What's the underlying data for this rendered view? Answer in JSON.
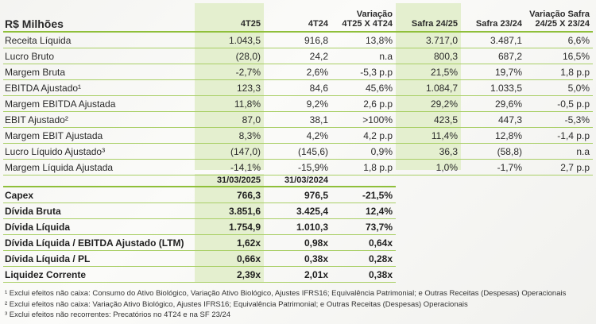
{
  "header": {
    "label": "R$ Milhões",
    "col1": "4T25",
    "col2": "4T24",
    "col3_line1": "Variação",
    "col3_line2": "4T25 X 4T24",
    "col4": "Safra 24/25",
    "col5": "Safra 23/24",
    "col6_line1": "Variação Safra",
    "col6_line2": "24/25 X 23/24"
  },
  "rows": [
    {
      "label": "Receita Líquida",
      "v": [
        "1.043,5",
        "916,8",
        "13,8%",
        "3.717,0",
        "3.487,1",
        "6,6%"
      ]
    },
    {
      "label": "Lucro Bruto",
      "v": [
        "(28,0)",
        "24,2",
        "n.a",
        "800,3",
        "687,2",
        "16,5%"
      ]
    },
    {
      "label": "Margem Bruta",
      "v": [
        "-2,7%",
        "2,6%",
        "-5,3 p.p",
        "21,5%",
        "19,7%",
        "1,8 p.p"
      ]
    },
    {
      "label": "EBITDA Ajustado¹",
      "v": [
        "123,3",
        "84,6",
        "45,6%",
        "1.084,7",
        "1.033,5",
        "5,0%"
      ]
    },
    {
      "label": "Margem EBITDA Ajustada",
      "v": [
        "11,8%",
        "9,2%",
        "2,6 p.p",
        "29,2%",
        "29,6%",
        "-0,5 p.p"
      ]
    },
    {
      "label": "EBIT Ajustado²",
      "v": [
        "87,0",
        "38,1",
        ">100%",
        "423,5",
        "447,3",
        "-5,3%"
      ]
    },
    {
      "label": "Margem EBIT Ajustada",
      "v": [
        "8,3%",
        "4,2%",
        "4,2 p.p",
        "11,4%",
        "12,8%",
        "-1,4 p.p"
      ]
    },
    {
      "label": "Lucro Líquido Ajustado³",
      "v": [
        "(147,0)",
        "(145,6)",
        "0,9%",
        "36,3",
        "(58,8)",
        "n.a"
      ]
    },
    {
      "label": "Margem Líquida Ajustada",
      "v": [
        "-14,1%",
        "-15,9%",
        "1,8 p.p",
        "1,0%",
        "-1,7%",
        "2,7 p.p"
      ]
    }
  ],
  "balance": {
    "date1": "31/03/2025",
    "date2": "31/03/2024",
    "rows": [
      {
        "label": "Capex",
        "v": [
          "766,3",
          "976,5",
          "-21,5%"
        ]
      },
      {
        "label": "Dívida Bruta",
        "v": [
          "3.851,6",
          "3.425,4",
          "12,4%"
        ]
      },
      {
        "label": "Dívida Líquida",
        "v": [
          "1.754,9",
          "1.010,3",
          "73,7%"
        ]
      },
      {
        "label": "Dívida Líquida / EBITDA Ajustado (LTM)",
        "v": [
          "1,62x",
          "0,98x",
          "0,64x"
        ]
      },
      {
        "label": "Dívida Líquida / PL",
        "v": [
          "0,66x",
          "0,38x",
          "0,28x"
        ]
      },
      {
        "label": "Liquidez Corrente",
        "v": [
          "2,39x",
          "2,01x",
          "0,38x"
        ]
      }
    ]
  },
  "footnotes": [
    "¹ Exclui efeitos não caixa: Consumo do Ativo Biológico, Variação Ativo Biológico, Ajustes IFRS16; Equivalência Patrimonial; e Outras Receitas (Despesas) Operacionais",
    "² Exclui efeitos não caixa: Variação Ativo Biológico, Ajustes IFRS16; Equivalência Patrimonial; e Outras Receitas (Despesas) Operacionais",
    "³ Exclui efeitos não recorrentes: Precatórios no 4T24 e na SF 23/24"
  ],
  "colors": {
    "highlight": "#e4efcf",
    "rule": "#8fbf3a"
  }
}
